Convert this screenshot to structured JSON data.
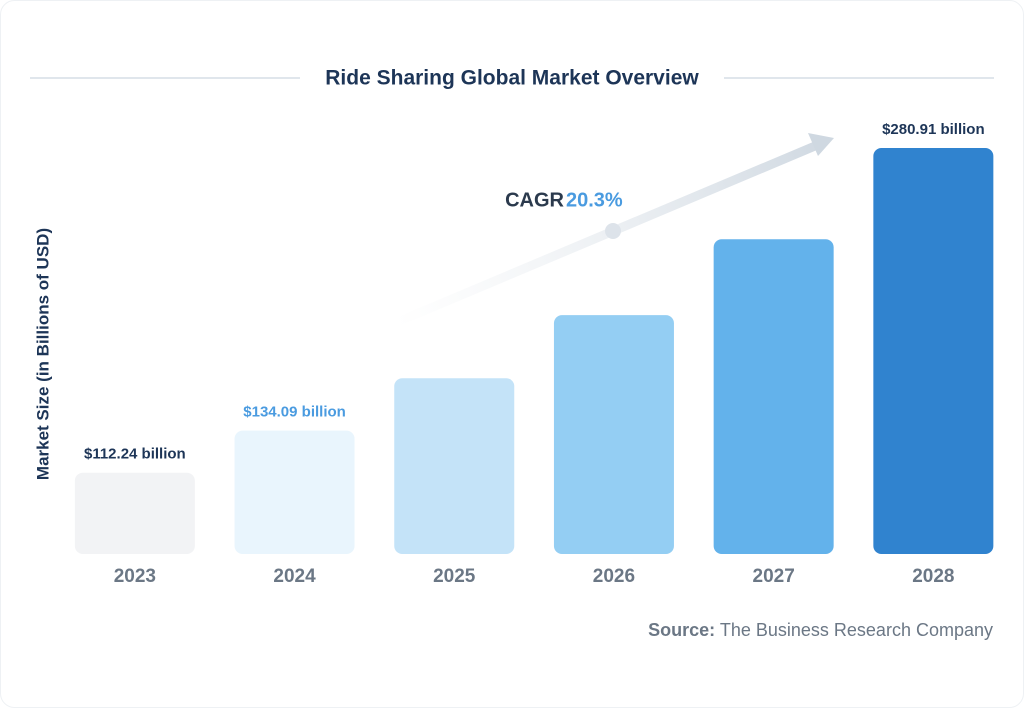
{
  "chart_data": {
    "type": "bar",
    "title": "Ride Sharing Global Market Overview",
    "y_label": "Market Size (in Billions  of USD)",
    "categories": [
      "2023",
      "2024",
      "2025",
      "2026",
      "2027",
      "2028"
    ],
    "values": [
      112.24,
      134.09,
      161.3,
      194.1,
      233.5,
      280.91
    ],
    "value_labels": [
      "$112.24 billion",
      "$134.09 billion",
      null,
      null,
      null,
      "$280.91 billion"
    ],
    "value_label_colors": [
      "#1d3557",
      "#4a9be0",
      null,
      null,
      null,
      "#1d3557"
    ],
    "colors": [
      "#f2f3f5",
      "#e9f5fd",
      "#c4e3f8",
      "#94cef3",
      "#63b2eb",
      "#3083cf"
    ],
    "ylim": [
      70,
      290
    ],
    "cagr_label": "CAGR",
    "cagr_value": "20.3%",
    "source_label": "Source:",
    "source": "The Business Research Company"
  }
}
